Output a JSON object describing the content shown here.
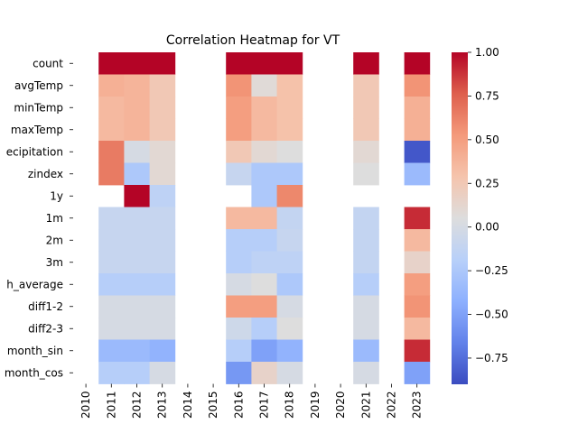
{
  "chart_data": {
    "type": "heatmap",
    "title": "Correlation Heatmap for VT",
    "xlabel": "",
    "ylabel": "",
    "x": [
      "2010",
      "2011",
      "2012",
      "2013",
      "2014",
      "2015",
      "2016",
      "2017",
      "2018",
      "2019",
      "2020",
      "2021",
      "2022",
      "2023"
    ],
    "y": [
      "count",
      "avgTemp",
      "minTemp",
      "maxTemp",
      "precipitation",
      "zindex",
      "1y",
      "1m",
      "2m",
      "3m",
      "month_average",
      "diff1-2",
      "diff2-3",
      "month_sin",
      "month_cos"
    ],
    "y_display": [
      "count",
      "avgTemp",
      "minTemp",
      "maxTemp",
      "ecipitation",
      "zindex",
      "1y",
      "1m",
      "2m",
      "3m",
      "h_average",
      "diff1-2",
      "diff2-3",
      "month_sin",
      "month_cos"
    ],
    "values": [
      [
        null,
        1.0,
        1.0,
        1.0,
        null,
        null,
        1.0,
        1.0,
        1.0,
        null,
        null,
        1.0,
        null,
        1.0
      ],
      [
        null,
        0.4,
        0.38,
        0.25,
        null,
        null,
        0.55,
        0.08,
        0.3,
        null,
        null,
        0.25,
        null,
        0.55
      ],
      [
        null,
        0.35,
        0.38,
        0.25,
        null,
        null,
        0.5,
        0.35,
        0.3,
        null,
        null,
        0.25,
        null,
        0.4
      ],
      [
        null,
        0.35,
        0.38,
        0.25,
        null,
        null,
        0.5,
        0.35,
        0.3,
        null,
        null,
        0.25,
        null,
        0.4
      ],
      [
        null,
        0.65,
        0.0,
        0.1,
        null,
        null,
        0.25,
        0.1,
        0.05,
        null,
        null,
        0.1,
        null,
        -0.85
      ],
      [
        null,
        0.65,
        -0.25,
        0.1,
        null,
        null,
        -0.1,
        -0.25,
        -0.25,
        null,
        null,
        0.05,
        null,
        -0.35
      ],
      [
        null,
        null,
        1.0,
        -0.15,
        null,
        null,
        null,
        -0.25,
        0.6,
        null,
        null,
        null,
        null,
        null
      ],
      [
        null,
        -0.1,
        -0.1,
        -0.1,
        null,
        null,
        0.35,
        0.35,
        -0.12,
        null,
        null,
        -0.12,
        null,
        0.9
      ],
      [
        null,
        -0.1,
        -0.1,
        -0.1,
        null,
        null,
        -0.2,
        -0.2,
        -0.1,
        null,
        null,
        -0.12,
        null,
        0.35
      ],
      [
        null,
        -0.1,
        -0.1,
        -0.1,
        null,
        null,
        -0.2,
        -0.15,
        -0.15,
        null,
        null,
        -0.12,
        null,
        0.15
      ],
      [
        null,
        -0.2,
        -0.2,
        -0.2,
        null,
        null,
        0.0,
        0.05,
        -0.25,
        null,
        null,
        -0.2,
        null,
        0.5
      ],
      [
        null,
        0.0,
        0.0,
        0.0,
        null,
        null,
        0.5,
        0.5,
        0.0,
        null,
        null,
        0.0,
        null,
        0.55
      ],
      [
        null,
        0.0,
        0.0,
        0.0,
        null,
        null,
        -0.05,
        -0.2,
        0.05,
        null,
        null,
        0.0,
        null,
        0.35
      ],
      [
        null,
        -0.35,
        -0.35,
        -0.4,
        null,
        null,
        -0.2,
        -0.5,
        -0.4,
        null,
        null,
        -0.35,
        null,
        0.9
      ],
      [
        null,
        -0.2,
        -0.2,
        0.0,
        null,
        null,
        -0.55,
        0.15,
        0.0,
        null,
        null,
        0.0,
        null,
        -0.5
      ]
    ],
    "vmin": -0.9,
    "vmax": 1.0,
    "colormap": "coolwarm",
    "colorbar_ticks": [
      1.0,
      0.75,
      0.5,
      0.25,
      0.0,
      -0.25,
      -0.5,
      -0.75
    ],
    "colorbar_labels": [
      "1.00",
      "0.75",
      "0.50",
      "0.25",
      "0.00",
      "−0.25",
      "−0.50",
      "−0.75"
    ],
    "grid": false,
    "legend": "colorbar-right"
  }
}
